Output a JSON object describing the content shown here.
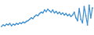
{
  "chart_data": {
    "type": "line",
    "color": "#3d8fd1",
    "marker": "circle",
    "tick_labels": false,
    "ylim": [
      0,
      45
    ],
    "values": [
      10,
      12,
      11,
      13,
      12,
      14,
      11,
      13,
      12,
      14,
      13,
      15,
      14,
      16,
      15,
      17,
      18,
      20,
      22,
      21,
      24,
      26,
      25,
      28,
      30,
      29,
      33,
      31,
      34,
      32,
      30,
      33,
      29,
      31,
      28,
      30,
      27,
      29,
      26,
      28,
      25,
      27,
      24,
      26,
      30,
      22,
      18,
      35,
      20,
      15,
      38,
      25,
      12,
      40,
      22,
      36
    ]
  }
}
